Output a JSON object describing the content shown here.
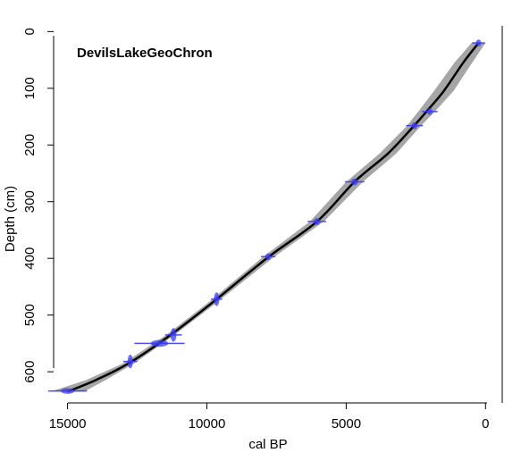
{
  "chart_data": {
    "type": "line",
    "title": "DevilsLakeGeoChron",
    "xlabel": "cal BP",
    "ylabel": "Depth (cm)",
    "xlim": [
      15500,
      -600
    ],
    "ylim": [
      655,
      -10
    ],
    "x_ticks": [
      15000,
      10000,
      5000,
      0
    ],
    "y_ticks": [
      0,
      100,
      200,
      300,
      400,
      500,
      600
    ],
    "colors": {
      "model_line": "#000000",
      "uncertainty_band": "#a6a6a6",
      "dates": "#3b3bf0"
    },
    "series": [
      {
        "points": [
          {
            "x": 250,
            "y": 20
          },
          {
            "x": 800,
            "y": 55
          },
          {
            "x": 1500,
            "y": 105
          },
          {
            "x": 2100,
            "y": 140
          },
          {
            "x": 2600,
            "y": 168
          },
          {
            "x": 3500,
            "y": 215
          },
          {
            "x": 4700,
            "y": 265
          },
          {
            "x": 6050,
            "y": 335
          },
          {
            "x": 7800,
            "y": 398
          },
          {
            "x": 9800,
            "y": 478
          },
          {
            "x": 11300,
            "y": 535
          },
          {
            "x": 12800,
            "y": 585
          },
          {
            "x": 14000,
            "y": 615
          },
          {
            "x": 15000,
            "y": 635
          }
        ],
        "band_halfwidth_years": [
          250,
          320,
          350,
          300,
          250,
          300,
          300,
          250,
          200,
          150,
          150,
          200,
          350,
          600
        ]
      }
    ],
    "dates": [
      {
        "x": 250,
        "y": 20,
        "x_err": 230,
        "y_err": 6
      },
      {
        "x": 2000,
        "y": 141,
        "x_err": 280,
        "y_err": 6
      },
      {
        "x": 2550,
        "y": 166,
        "x_err": 300,
        "y_err": 6
      },
      {
        "x": 4700,
        "y": 265,
        "x_err": 350,
        "y_err": 6
      },
      {
        "x": 6050,
        "y": 335,
        "x_err": 330,
        "y_err": 6
      },
      {
        "x": 7800,
        "y": 397,
        "x_err": 260,
        "y_err": 6
      },
      {
        "x": 9650,
        "y": 472,
        "x_err": 200,
        "y_err": 12
      },
      {
        "x": 11200,
        "y": 535,
        "x_err": 300,
        "y_err": 12
      },
      {
        "x": 11700,
        "y": 550,
        "x_err": 900,
        "y_err": 6
      },
      {
        "x": 12750,
        "y": 582,
        "x_err": 250,
        "y_err": 12
      },
      {
        "x": 15000,
        "y": 634,
        "x_err": 700,
        "y_err": 5
      }
    ]
  }
}
